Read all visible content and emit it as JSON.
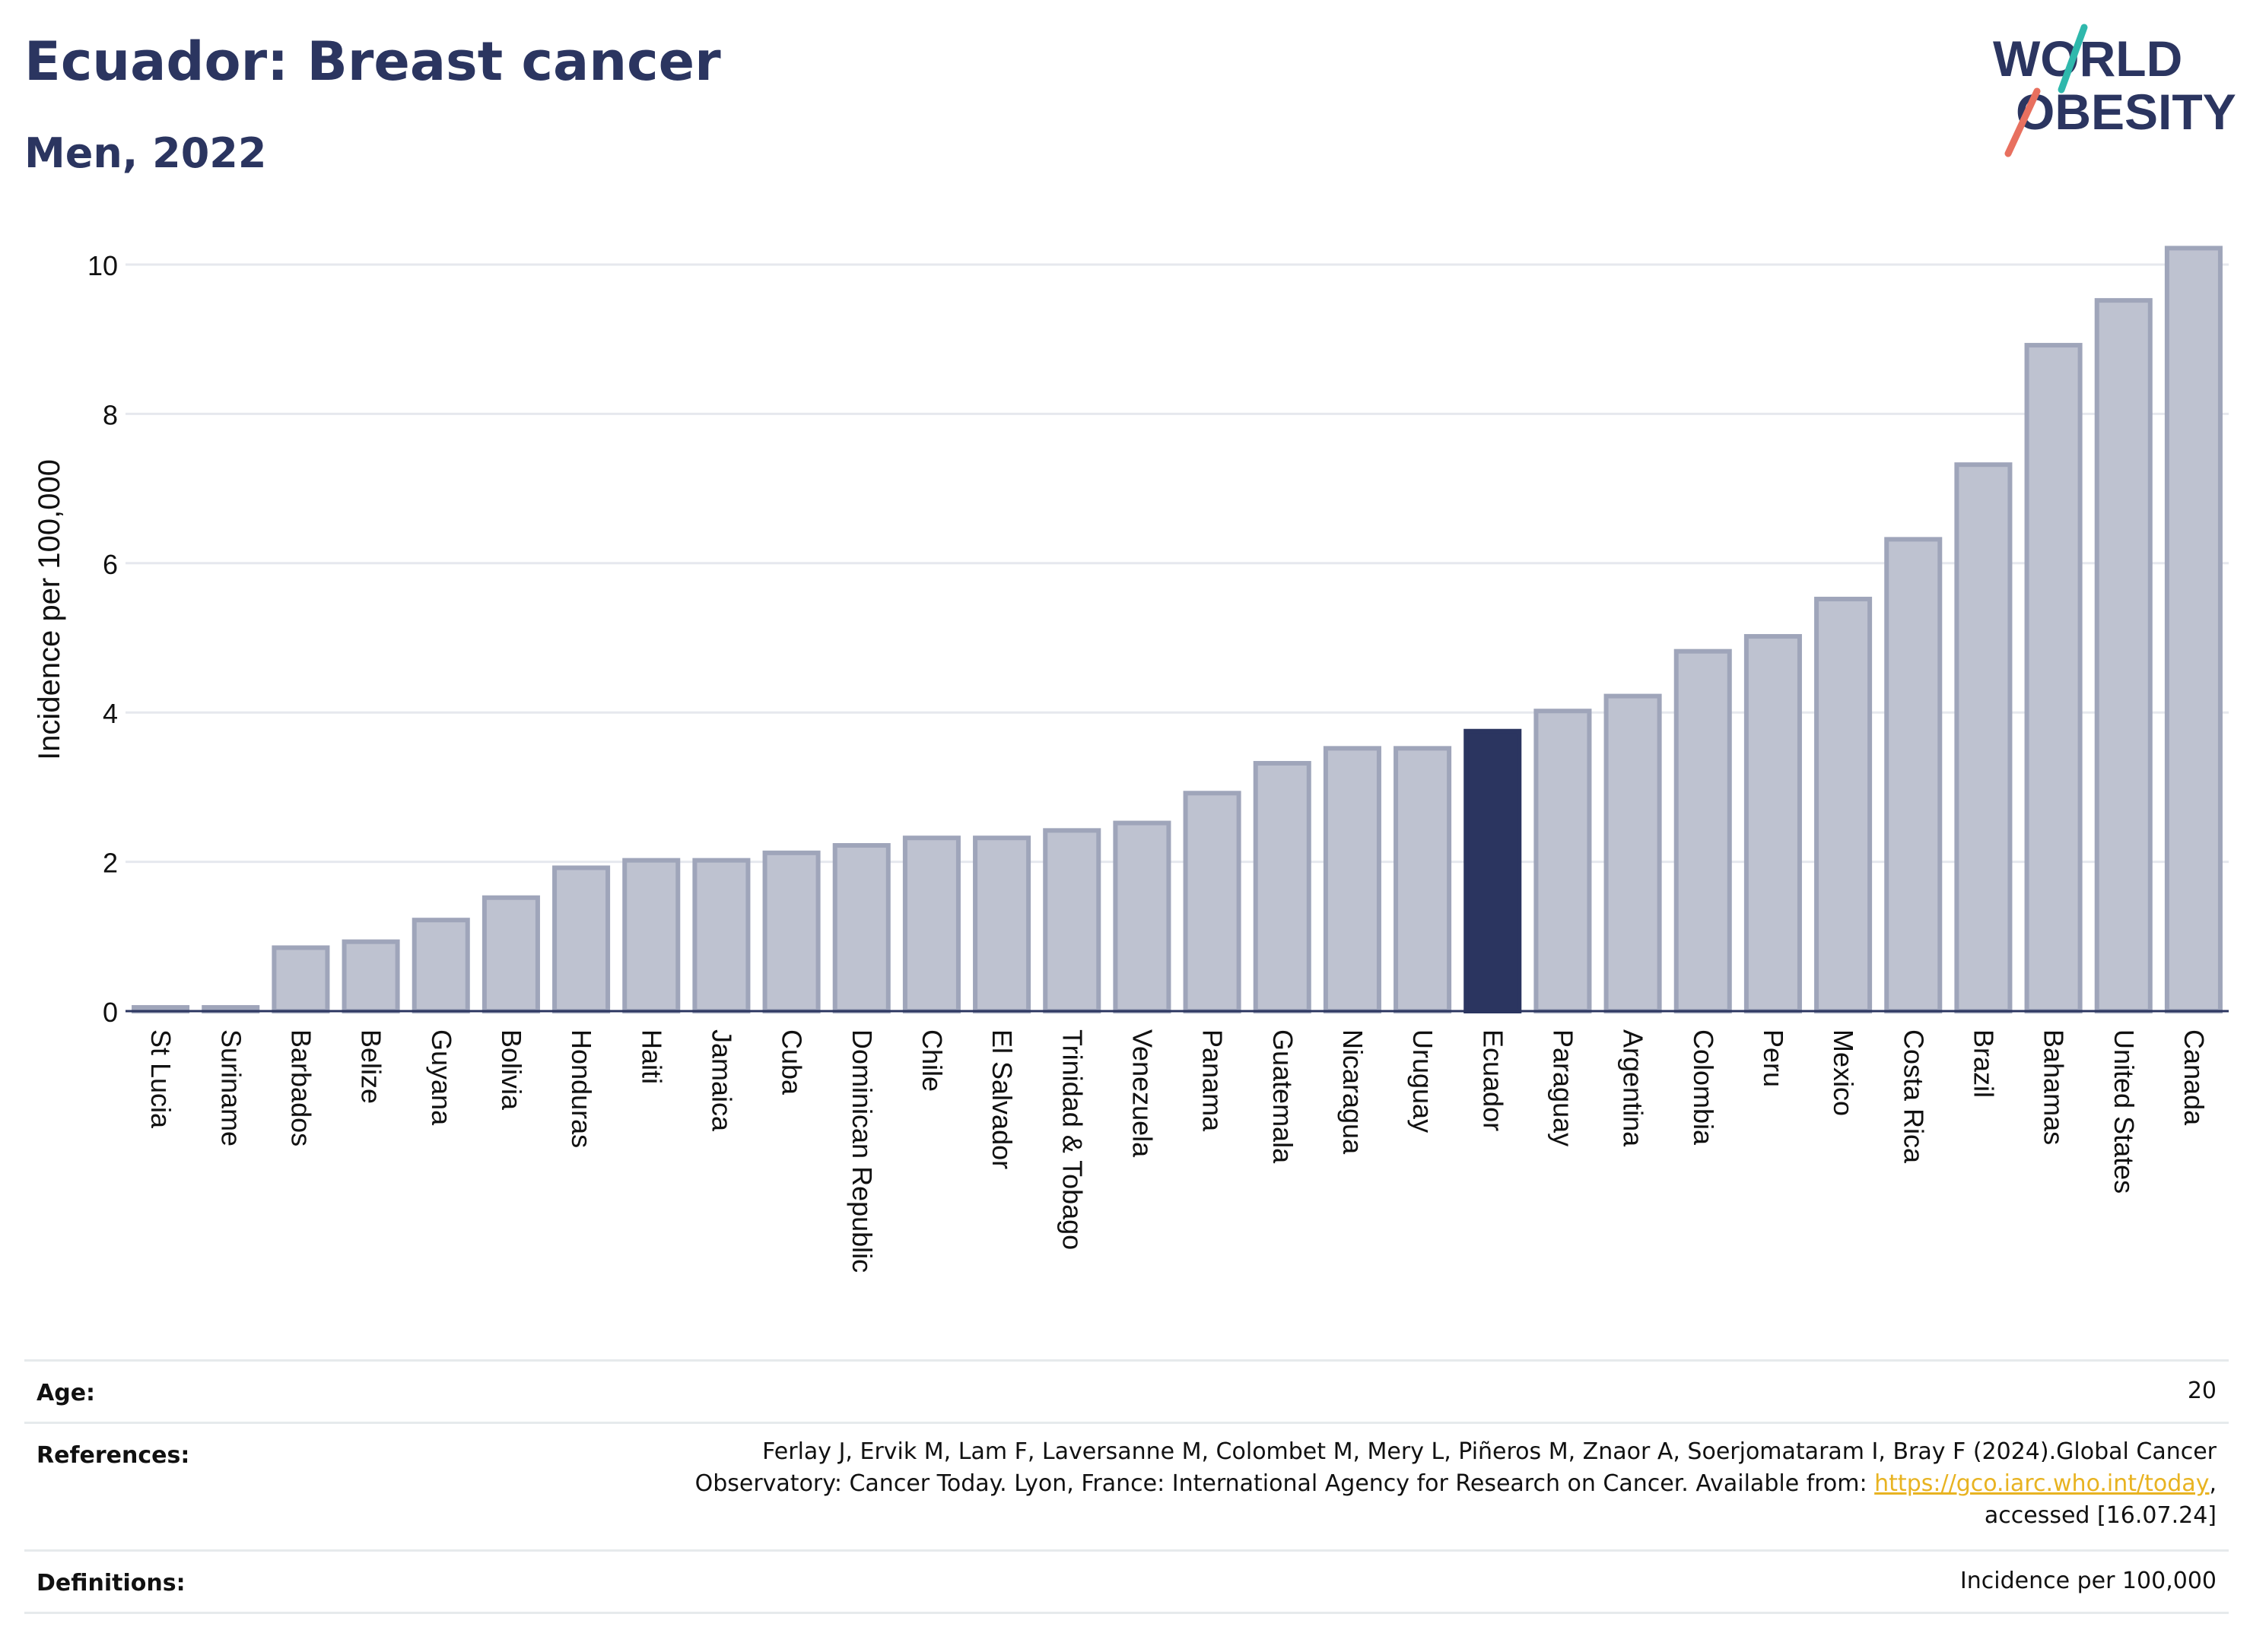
{
  "header": {
    "title": "Ecuador: Breast cancer",
    "subtitle": "Men, 2022"
  },
  "logo": {
    "line1": "WORLD",
    "line2": "OBESITY",
    "accent_teal": "#2fb8ac",
    "accent_coral": "#e8705f",
    "text_color": "#2b3560"
  },
  "chart_data": {
    "type": "bar",
    "ylabel": "Incidence per 100,000",
    "ylim": [
      0,
      10.5
    ],
    "yticks": [
      0,
      2,
      4,
      6,
      8,
      10
    ],
    "grid": true,
    "highlight": "Ecuador",
    "colors": {
      "bar": "#bec2d0",
      "bar_border": "#9fa5ba",
      "highlight": "#2b3560",
      "grid": "#e6e8ee",
      "axis": "#2b3560"
    },
    "categories": [
      "St Lucia",
      "Suriname",
      "Barbados",
      "Belize",
      "Guyana",
      "Bolivia",
      "Honduras",
      "Haiti",
      "Jamaica",
      "Cuba",
      "Dominican Republic",
      "Chile",
      "El Salvador",
      "Trinidad & Tobago",
      "Venezuela",
      "Panama",
      "Guatemala",
      "Nicaragua",
      "Uruguay",
      "Ecuador",
      "Paraguay",
      "Argentina",
      "Colombia",
      "Peru",
      "Mexico",
      "Costa Rica",
      "Brazil",
      "Bahamas",
      "United States",
      "Canada"
    ],
    "values": [
      0.05,
      0.05,
      0.85,
      0.93,
      1.22,
      1.52,
      1.92,
      2.02,
      2.02,
      2.12,
      2.22,
      2.32,
      2.32,
      2.42,
      2.52,
      2.92,
      3.32,
      3.52,
      3.52,
      3.75,
      4.02,
      4.22,
      4.82,
      5.02,
      5.52,
      6.32,
      7.32,
      8.92,
      9.52,
      10.22
    ]
  },
  "footer": {
    "age_label": "Age:",
    "age_value": "20",
    "references_label": "References:",
    "references_line1": "Ferlay J, Ervik M, Lam F, Laversanne M, Colombet M, Mery L, Piñeros M, Znaor A, Soerjomataram I, Bray F (2024).Global Cancer",
    "references_line2_pre": "Observatory: Cancer Today. Lyon, France: International Agency for Research on Cancer. Available from: ",
    "references_link": "https://gco.iarc.who.int/today",
    "references_line2_post": ",",
    "references_line3": "accessed [16.07.24]",
    "definitions_label": "Definitions:",
    "definitions_value": "Incidence per 100,000"
  }
}
